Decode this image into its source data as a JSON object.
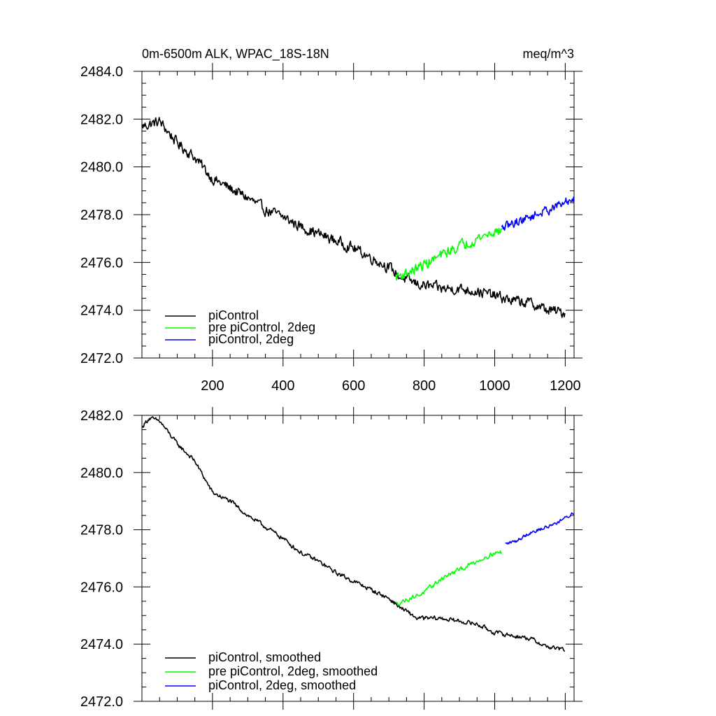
{
  "chart_data": [
    {
      "type": "line",
      "title": "0m-6500m ALK, WPAC_18S-18N",
      "units": "meq/m^3",
      "xlim": [
        0,
        1225
      ],
      "ylim": [
        2472.0,
        2484.0
      ],
      "x_ticks": [
        200,
        400,
        600,
        800,
        1000,
        1200
      ],
      "x_tick_labels": [
        "200",
        "400",
        "600",
        "800",
        "1000",
        "1200"
      ],
      "y_ticks": [
        2472.0,
        2474.0,
        2476.0,
        2478.0,
        2480.0,
        2482.0,
        2484.0
      ],
      "y_tick_labels": [
        "2472.0",
        "2474.0",
        "2476.0",
        "2478.0",
        "2480.0",
        "2482.0",
        "2484.0"
      ],
      "legend_position": "bottom-left",
      "series": [
        {
          "name": "piControl",
          "color": "#000000",
          "x": [
            1,
            50,
            100,
            150,
            200,
            250,
            300,
            350,
            400,
            450,
            500,
            550,
            600,
            650,
            700,
            730,
            780,
            850,
            900,
            950,
            1000,
            1050,
            1100,
            1150,
            1200
          ],
          "values": [
            2481.7,
            2481.9,
            2481.0,
            2480.4,
            2479.5,
            2479.1,
            2478.7,
            2478.2,
            2477.9,
            2477.5,
            2477.2,
            2476.9,
            2476.6,
            2476.2,
            2475.8,
            2475.4,
            2475.1,
            2474.9,
            2474.9,
            2474.8,
            2474.6,
            2474.4,
            2474.3,
            2474.0,
            2473.9
          ],
          "noise": 0.35
        },
        {
          "name": "pre piControl, 2deg",
          "color": "#00ff00",
          "x": [
            720,
            760,
            800,
            850,
            900,
            950,
            1000,
            1020
          ],
          "values": [
            2475.4,
            2475.6,
            2475.9,
            2476.3,
            2476.7,
            2477.0,
            2477.3,
            2477.3
          ],
          "noise": 0.35
        },
        {
          "name": "piControl, 2deg",
          "color": "#0000ff",
          "x": [
            1020,
            1060,
            1100,
            1150,
            1200,
            1225
          ],
          "values": [
            2477.4,
            2477.7,
            2477.9,
            2478.2,
            2478.5,
            2478.7
          ],
          "noise": 0.3
        }
      ]
    },
    {
      "type": "line",
      "title": "",
      "xlim": [
        0,
        1225
      ],
      "ylim": [
        2472.0,
        2482.0
      ],
      "y_ticks": [
        2472.0,
        2474.0,
        2476.0,
        2478.0,
        2480.0,
        2482.0
      ],
      "y_tick_labels": [
        "2472.0",
        "2474.0",
        "2476.0",
        "2478.0",
        "2480.0",
        "2482.0"
      ],
      "x_ticks": [
        200,
        400,
        600,
        800,
        1000,
        1200
      ],
      "legend_position": "bottom-left",
      "series": [
        {
          "name": "piControl, smoothed",
          "color": "#000000",
          "x": [
            1,
            20,
            50,
            100,
            150,
            200,
            250,
            300,
            350,
            400,
            450,
            500,
            550,
            600,
            650,
            700,
            730,
            780,
            850,
            900,
            950,
            1000,
            1050,
            1100,
            1150,
            1200
          ],
          "values": [
            2481.6,
            2481.9,
            2481.8,
            2481.0,
            2480.4,
            2479.3,
            2479.0,
            2478.5,
            2478.1,
            2477.7,
            2477.2,
            2476.9,
            2476.5,
            2476.2,
            2475.9,
            2475.6,
            2475.3,
            2474.9,
            2474.9,
            2474.8,
            2474.7,
            2474.4,
            2474.3,
            2474.2,
            2473.9,
            2473.8
          ],
          "noise": 0.12
        },
        {
          "name": "pre piControl, 2deg, smoothed",
          "color": "#00ff00",
          "x": [
            720,
            760,
            800,
            850,
            900,
            950,
            1000,
            1020
          ],
          "values": [
            2475.4,
            2475.6,
            2475.8,
            2476.3,
            2476.6,
            2476.9,
            2477.2,
            2477.2
          ],
          "noise": 0.12
        },
        {
          "name": "piControl, 2deg, smoothed",
          "color": "#0000ff",
          "x": [
            1030,
            1060,
            1100,
            1150,
            1200,
            1225
          ],
          "values": [
            2477.5,
            2477.6,
            2477.9,
            2478.1,
            2478.4,
            2478.6
          ],
          "noise": 0.1
        }
      ]
    }
  ]
}
